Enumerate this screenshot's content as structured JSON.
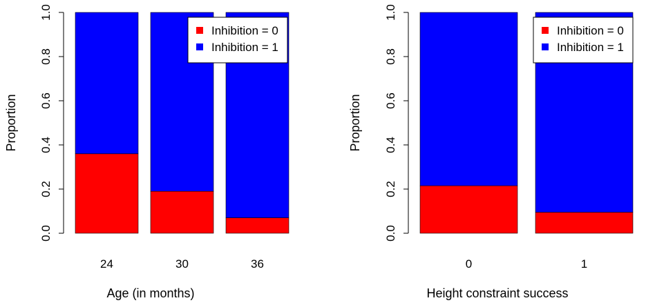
{
  "colors": {
    "inhibition_0": "#ff0000",
    "inhibition_1": "#0000ff",
    "axis": "#000000",
    "legend_border": "#000000",
    "background": "#ffffff"
  },
  "chart_data": [
    {
      "type": "bar",
      "stacked": true,
      "title": "",
      "xlabel": "Age (in months)",
      "ylabel": "Proportion",
      "ylim": [
        0,
        1
      ],
      "yticks": [
        "0.0",
        "0.2",
        "0.4",
        "0.6",
        "0.8",
        "1.0"
      ],
      "categories": [
        "24",
        "30",
        "36"
      ],
      "series": [
        {
          "name": "Inhibition = 0",
          "values": [
            0.36,
            0.19,
            0.07
          ]
        },
        {
          "name": "Inhibition = 1",
          "values": [
            0.64,
            0.81,
            0.93
          ]
        }
      ],
      "legend": {
        "position": "top-right",
        "entries": [
          "Inhibition = 0",
          "Inhibition = 1"
        ]
      }
    },
    {
      "type": "bar",
      "stacked": true,
      "title": "",
      "xlabel": "Height constraint success",
      "ylabel": "Proportion",
      "ylim": [
        0,
        1
      ],
      "yticks": [
        "0.0",
        "0.2",
        "0.4",
        "0.6",
        "0.8",
        "1.0"
      ],
      "categories": [
        "0",
        "1"
      ],
      "series": [
        {
          "name": "Inhibition = 0",
          "values": [
            0.215,
            0.095
          ]
        },
        {
          "name": "Inhibition = 1",
          "values": [
            0.785,
            0.905
          ]
        }
      ],
      "legend": {
        "position": "top-right",
        "entries": [
          "Inhibition = 0",
          "Inhibition = 1"
        ]
      }
    }
  ]
}
